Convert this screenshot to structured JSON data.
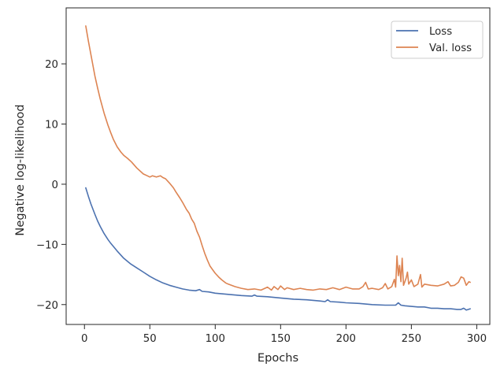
{
  "chart_data": {
    "type": "line",
    "xlabel": "Epochs",
    "ylabel": "Negative log-likelihood",
    "xlim": [
      -14,
      310
    ],
    "ylim": [
      -23.3,
      29.3
    ],
    "x_ticks": [
      0,
      50,
      100,
      150,
      200,
      250,
      300
    ],
    "y_ticks": [
      -20,
      -10,
      0,
      10,
      20
    ],
    "x_tick_labels": [
      "0",
      "50",
      "100",
      "150",
      "200",
      "250",
      "300"
    ],
    "y_tick_labels": [
      "−20",
      "−10",
      "0",
      "10",
      "20"
    ],
    "grid": false,
    "legend_position": "top-right",
    "series": [
      {
        "name": "Loss",
        "color": "#4c72b0",
        "points": [
          [
            1,
            -0.6
          ],
          [
            3,
            -2.0
          ],
          [
            5,
            -3.3
          ],
          [
            8,
            -5.0
          ],
          [
            10,
            -6.1
          ],
          [
            12,
            -7.0
          ],
          [
            15,
            -8.2
          ],
          [
            18,
            -9.2
          ],
          [
            20,
            -9.8
          ],
          [
            25,
            -11.1
          ],
          [
            30,
            -12.3
          ],
          [
            35,
            -13.2
          ],
          [
            40,
            -13.9
          ],
          [
            45,
            -14.6
          ],
          [
            50,
            -15.3
          ],
          [
            55,
            -15.9
          ],
          [
            60,
            -16.4
          ],
          [
            65,
            -16.8
          ],
          [
            70,
            -17.1
          ],
          [
            75,
            -17.4
          ],
          [
            80,
            -17.6
          ],
          [
            85,
            -17.7
          ],
          [
            88,
            -17.5
          ],
          [
            90,
            -17.8
          ],
          [
            95,
            -17.9
          ],
          [
            100,
            -18.1
          ],
          [
            110,
            -18.3
          ],
          [
            120,
            -18.5
          ],
          [
            128,
            -18.6
          ],
          [
            130,
            -18.4
          ],
          [
            132,
            -18.6
          ],
          [
            140,
            -18.7
          ],
          [
            150,
            -18.9
          ],
          [
            160,
            -19.1
          ],
          [
            170,
            -19.2
          ],
          [
            180,
            -19.4
          ],
          [
            184,
            -19.5
          ],
          [
            186,
            -19.2
          ],
          [
            188,
            -19.5
          ],
          [
            195,
            -19.6
          ],
          [
            200,
            -19.7
          ],
          [
            210,
            -19.8
          ],
          [
            220,
            -20.0
          ],
          [
            230,
            -20.1
          ],
          [
            238,
            -20.1
          ],
          [
            240,
            -19.7
          ],
          [
            242,
            -20.1
          ],
          [
            245,
            -20.2
          ],
          [
            250,
            -20.3
          ],
          [
            255,
            -20.4
          ],
          [
            260,
            -20.4
          ],
          [
            265,
            -20.6
          ],
          [
            270,
            -20.6
          ],
          [
            275,
            -20.7
          ],
          [
            280,
            -20.7
          ],
          [
            285,
            -20.8
          ],
          [
            288,
            -20.8
          ],
          [
            290,
            -20.6
          ],
          [
            292,
            -20.9
          ],
          [
            295,
            -20.7
          ]
        ]
      },
      {
        "name": "Val. loss",
        "color": "#dd8452",
        "points": [
          [
            1,
            26.3
          ],
          [
            3,
            23.8
          ],
          [
            5,
            21.5
          ],
          [
            8,
            18.0
          ],
          [
            10,
            16.0
          ],
          [
            12,
            14.2
          ],
          [
            15,
            11.8
          ],
          [
            18,
            9.8
          ],
          [
            20,
            8.6
          ],
          [
            22,
            7.5
          ],
          [
            25,
            6.2
          ],
          [
            28,
            5.3
          ],
          [
            30,
            4.8
          ],
          [
            33,
            4.3
          ],
          [
            36,
            3.7
          ],
          [
            40,
            2.7
          ],
          [
            45,
            1.7
          ],
          [
            48,
            1.4
          ],
          [
            50,
            1.2
          ],
          [
            52,
            1.4
          ],
          [
            55,
            1.2
          ],
          [
            58,
            1.4
          ],
          [
            60,
            1.1
          ],
          [
            62,
            0.9
          ],
          [
            65,
            0.2
          ],
          [
            68,
            -0.6
          ],
          [
            70,
            -1.3
          ],
          [
            73,
            -2.3
          ],
          [
            75,
            -3.0
          ],
          [
            78,
            -4.2
          ],
          [
            80,
            -4.8
          ],
          [
            82,
            -5.8
          ],
          [
            84,
            -6.5
          ],
          [
            86,
            -7.8
          ],
          [
            88,
            -8.8
          ],
          [
            90,
            -10.2
          ],
          [
            92,
            -11.5
          ],
          [
            94,
            -12.6
          ],
          [
            96,
            -13.6
          ],
          [
            98,
            -14.2
          ],
          [
            100,
            -14.8
          ],
          [
            103,
            -15.5
          ],
          [
            105,
            -15.9
          ],
          [
            108,
            -16.4
          ],
          [
            110,
            -16.6
          ],
          [
            115,
            -17.0
          ],
          [
            120,
            -17.3
          ],
          [
            125,
            -17.5
          ],
          [
            130,
            -17.4
          ],
          [
            135,
            -17.6
          ],
          [
            140,
            -17.1
          ],
          [
            143,
            -17.6
          ],
          [
            145,
            -17.0
          ],
          [
            148,
            -17.5
          ],
          [
            150,
            -16.9
          ],
          [
            153,
            -17.5
          ],
          [
            155,
            -17.2
          ],
          [
            160,
            -17.5
          ],
          [
            165,
            -17.3
          ],
          [
            170,
            -17.5
          ],
          [
            175,
            -17.6
          ],
          [
            180,
            -17.4
          ],
          [
            185,
            -17.5
          ],
          [
            190,
            -17.2
          ],
          [
            195,
            -17.5
          ],
          [
            200,
            -17.1
          ],
          [
            205,
            -17.4
          ],
          [
            210,
            -17.4
          ],
          [
            213,
            -17.0
          ],
          [
            215,
            -16.3
          ],
          [
            217,
            -17.4
          ],
          [
            220,
            -17.3
          ],
          [
            225,
            -17.5
          ],
          [
            228,
            -17.2
          ],
          [
            230,
            -16.5
          ],
          [
            232,
            -17.4
          ],
          [
            235,
            -17.0
          ],
          [
            237,
            -15.8
          ],
          [
            238,
            -17.1
          ],
          [
            239,
            -11.9
          ],
          [
            240,
            -15.2
          ],
          [
            241,
            -13.5
          ],
          [
            242,
            -16.2
          ],
          [
            243,
            -12.3
          ],
          [
            244,
            -16.8
          ],
          [
            246,
            -15.6
          ],
          [
            247,
            -14.6
          ],
          [
            248,
            -16.6
          ],
          [
            250,
            -15.9
          ],
          [
            252,
            -17.0
          ],
          [
            255,
            -16.6
          ],
          [
            257,
            -15.0
          ],
          [
            258,
            -17.1
          ],
          [
            260,
            -16.6
          ],
          [
            265,
            -16.8
          ],
          [
            270,
            -16.9
          ],
          [
            275,
            -16.6
          ],
          [
            278,
            -16.2
          ],
          [
            280,
            -16.9
          ],
          [
            283,
            -16.8
          ],
          [
            286,
            -16.3
          ],
          [
            288,
            -15.4
          ],
          [
            290,
            -15.6
          ],
          [
            292,
            -16.8
          ],
          [
            294,
            -16.2
          ],
          [
            295,
            -16.3
          ]
        ]
      }
    ]
  }
}
